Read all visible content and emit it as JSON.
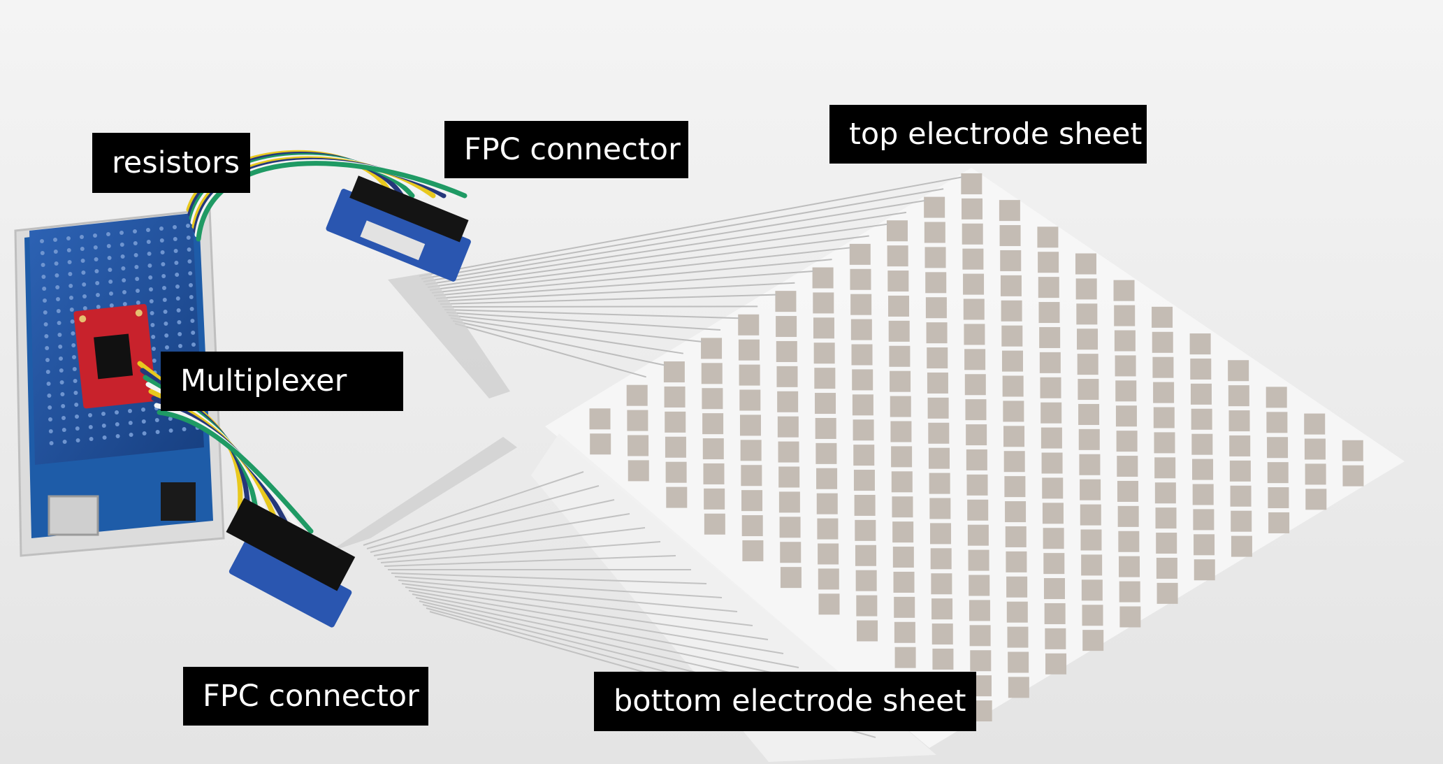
{
  "labels": {
    "resistors": "resistors",
    "fpc_connector_top": "FPC connector",
    "top_electrode_sheet": "top electrode sheet",
    "multiplexer": "Multiplexer",
    "fpc_connector_bottom": "FPC connector",
    "bottom_electrode_sheet": "bottom electrode sheet"
  },
  "colors": {
    "background": "#ebebeb",
    "label_background": "#000000",
    "label_text": "#ffffff",
    "electrode_pad": "#c4bcb4",
    "electrode_sheet": "#f7f7f7",
    "pcb_blue": "#1f4f9a",
    "mux_board_red": "#c8222c",
    "wire_yellow": "#e8c81e",
    "wire_green": "#1f9a64",
    "wire_blue": "#25387a",
    "wire_white": "#f4f4f4"
  }
}
